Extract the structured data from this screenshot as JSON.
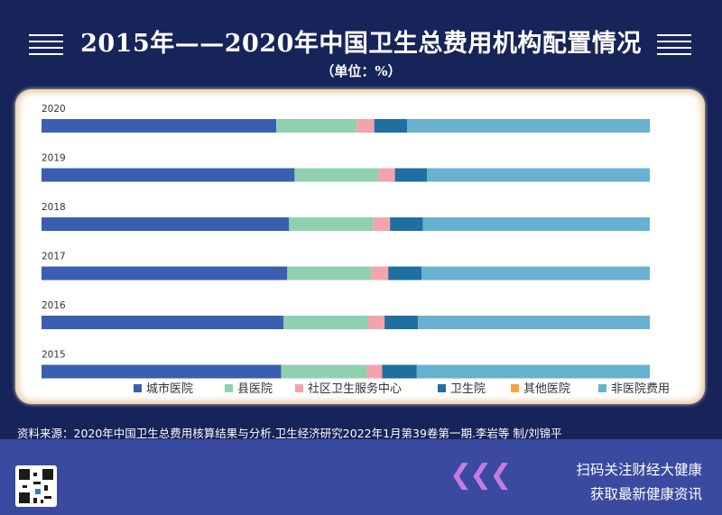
{
  "header": {
    "title": "2015年——2020年中国卫生总费用机构配置情况",
    "unit": "（单位：%）"
  },
  "chart_data": {
    "type": "bar",
    "orientation": "horizontal",
    "stacked": true,
    "categories": [
      "2020",
      "2019",
      "2018",
      "2017",
      "2016",
      "2015"
    ],
    "series": [
      {
        "name": "城市医院",
        "color": "#3a5fb0",
        "values": [
          38.6,
          41.6,
          40.7,
          40.4,
          39.8,
          39.4
        ]
      },
      {
        "name": "县医院",
        "color": "#8fd0b0",
        "values": [
          13.2,
          13.8,
          13.8,
          13.8,
          13.9,
          14.1
        ]
      },
      {
        "name": "社区卫生服务中心",
        "color": "#f3a3ac",
        "values": [
          2.9,
          2.7,
          2.8,
          2.8,
          2.7,
          2.5
        ]
      },
      {
        "name": "卫生院",
        "color": "#1f6fa0",
        "values": [
          5.4,
          5.3,
          5.4,
          5.5,
          5.5,
          5.7
        ]
      },
      {
        "name": "其他医院",
        "color": "#f4a442",
        "values": [
          0,
          0,
          0,
          0,
          0,
          0
        ]
      },
      {
        "name": "非医院费用",
        "color": "#68b1cf",
        "values": [
          39.9,
          36.6,
          37.3,
          37.5,
          38.1,
          38.3
        ]
      }
    ],
    "xlim": [
      0,
      100
    ],
    "legend_position": "bottom-right"
  },
  "source_text": "资料来源：2020年中国卫生总费用核算结果与分析.卫生经济研究2022年1月第39卷第一期.李岩等 制/刘锦平",
  "footer": {
    "cta_line1": "扫码关注财经大健康",
    "cta_line2": "获取最新健康资讯",
    "chevrons": "❮❮❮"
  }
}
